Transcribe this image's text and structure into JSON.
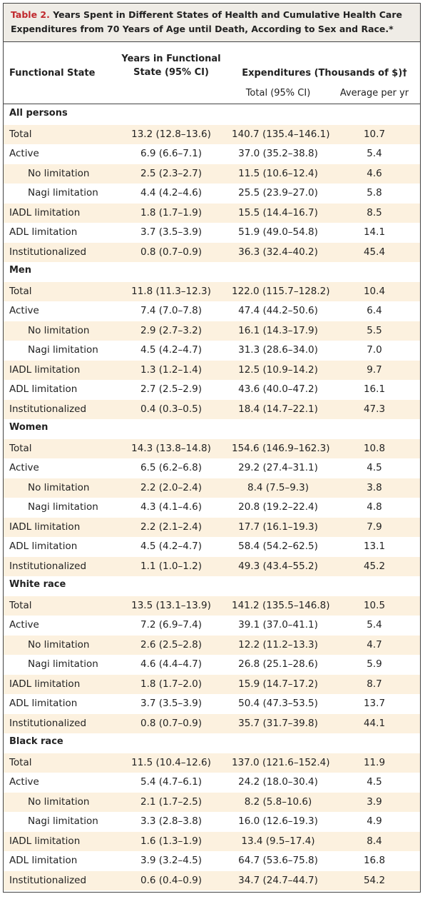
{
  "title": {
    "label": "Table 2.",
    "text": "Years Spent in Different States of Health and Cumulative Health Care Expenditures from 70 Years of Age until Death, According to Sex and Race.*"
  },
  "header": {
    "state": "Functional State",
    "years": "Years in Functional State (95% CI)",
    "expenditures": "Expenditures (Thousands of $)†",
    "total": "Total (95% CI)",
    "average": "Average per yr"
  },
  "groups": [
    {
      "name": "All persons",
      "rows": [
        [
          "Total",
          "13.2 (12.8–13.6)",
          "140.7 (135.4–146.1)",
          "10.7"
        ],
        [
          "Active",
          "6.9 (6.6–7.1)",
          "37.0 (35.2–38.8)",
          "5.4"
        ],
        [
          "No limitation",
          "2.5 (2.3–2.7)",
          "11.5 (10.6–12.4)",
          "4.6"
        ],
        [
          "Nagi limitation",
          "4.4 (4.2–4.6)",
          "25.5 (23.9–27.0)",
          "5.8"
        ],
        [
          "IADL limitation",
          "1.8 (1.7–1.9)",
          "15.5 (14.4–16.7)",
          "8.5"
        ],
        [
          "ADL limitation",
          "3.7 (3.5–3.9)",
          "51.9 (49.0–54.8)",
          "14.1"
        ],
        [
          "Institutionalized",
          "0.8 (0.7–0.9)",
          "36.3 (32.4–40.2)",
          "45.4"
        ]
      ]
    },
    {
      "name": "Men",
      "rows": [
        [
          "Total",
          "11.8 (11.3–12.3)",
          "122.0 (115.7–128.2)",
          "10.4"
        ],
        [
          "Active",
          "7.4 (7.0–7.8)",
          "47.4 (44.2–50.6)",
          "6.4"
        ],
        [
          "No limitation",
          "2.9 (2.7–3.2)",
          "16.1 (14.3–17.9)",
          "5.5"
        ],
        [
          "Nagi limitation",
          "4.5 (4.2–4.7)",
          "31.3 (28.6–34.0)",
          "7.0"
        ],
        [
          "IADL limitation",
          "1.3 (1.2–1.4)",
          "12.5 (10.9–14.2)",
          "9.7"
        ],
        [
          "ADL limitation",
          "2.7 (2.5–2.9)",
          "43.6 (40.0–47.2)",
          "16.1"
        ],
        [
          "Institutionalized",
          "0.4 (0.3–0.5)",
          "18.4 (14.7–22.1)",
          "47.3"
        ]
      ]
    },
    {
      "name": "Women",
      "rows": [
        [
          "Total",
          "14.3 (13.8–14.8)",
          "154.6 (146.9–162.3)",
          "10.8"
        ],
        [
          "Active",
          "6.5 (6.2–6.8)",
          "29.2 (27.4–31.1)",
          "4.5"
        ],
        [
          "No limitation",
          "2.2 (2.0–2.4)",
          "8.4 (7.5–9.3)",
          "3.8"
        ],
        [
          "Nagi limitation",
          "4.3 (4.1–4.6)",
          "20.8 (19.2–22.4)",
          "4.8"
        ],
        [
          "IADL limitation",
          "2.2 (2.1–2.4)",
          "17.7 (16.1–19.3)",
          "7.9"
        ],
        [
          "ADL limitation",
          "4.5 (4.2–4.7)",
          "58.4 (54.2–62.5)",
          "13.1"
        ],
        [
          "Institutionalized",
          "1.1 (1.0–1.2)",
          "49.3 (43.4–55.2)",
          "45.2"
        ]
      ]
    },
    {
      "name": "White race",
      "rows": [
        [
          "Total",
          "13.5 (13.1–13.9)",
          "141.2 (135.5–146.8)",
          "10.5"
        ],
        [
          "Active",
          "7.2 (6.9–7.4)",
          "39.1 (37.0–41.1)",
          "5.4"
        ],
        [
          "No limitation",
          "2.6 (2.5–2.8)",
          "12.2 (11.2–13.3)",
          "4.7"
        ],
        [
          "Nagi limitation",
          "4.6 (4.4–4.7)",
          "26.8 (25.1–28.6)",
          "5.9"
        ],
        [
          "IADL limitation",
          "1.8 (1.7–2.0)",
          "15.9 (14.7–17.2)",
          "8.7"
        ],
        [
          "ADL limitation",
          "3.7 (3.5–3.9)",
          "50.4 (47.3–53.5)",
          "13.7"
        ],
        [
          "Institutionalized",
          "0.8 (0.7–0.9)",
          "35.7 (31.7–39.8)",
          "44.1"
        ]
      ]
    },
    {
      "name": "Black race",
      "rows": [
        [
          "Total",
          "11.5 (10.4–12.6)",
          "137.0 (121.6–152.4)",
          "11.9"
        ],
        [
          "Active",
          "5.4 (4.7–6.1)",
          "24.2 (18.0–30.4)",
          "4.5"
        ],
        [
          "No limitation",
          "2.1 (1.7–2.5)",
          "8.2 (5.8–10.6)",
          "3.9"
        ],
        [
          "Nagi limitation",
          "3.3 (2.8–3.8)",
          "16.0 (12.6–19.3)",
          "4.9"
        ],
        [
          "IADL limitation",
          "1.6 (1.3–1.9)",
          "13.4 (9.5–17.4)",
          "8.4"
        ],
        [
          "ADL limitation",
          "3.9 (3.2–4.5)",
          "64.7 (53.6–75.8)",
          "16.8"
        ],
        [
          "Institutionalized",
          "0.6 (0.4–0.9)",
          "34.7 (24.7–44.7)",
          "54.2"
        ]
      ]
    }
  ]
}
